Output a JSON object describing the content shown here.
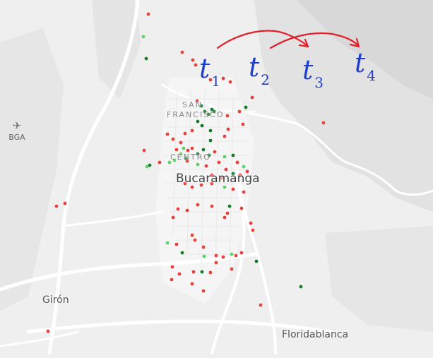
{
  "map": {
    "airport": {
      "icon": "airplane-icon",
      "code": "BGA"
    },
    "labels": {
      "city": "Bucaramanga",
      "giron": "Girón",
      "floridablanca": "Floridablanca",
      "san_francisco_1": "SAN",
      "san_francisco_2": "FRANCISCO",
      "centro": "CENTRO"
    },
    "colors": {
      "red": "#e8413c",
      "light_green": "#5fd36a",
      "dark_green": "#157a2c",
      "ink_blue": "#1e3fd0",
      "ink_red": "#e0202a"
    }
  },
  "annotations": {
    "t1": {
      "base": "t",
      "sub": "1"
    },
    "t2": {
      "base": "t",
      "sub": "2"
    },
    "t3": {
      "base": "t",
      "sub": "3"
    },
    "t4": {
      "base": "t",
      "sub": "4"
    }
  }
}
